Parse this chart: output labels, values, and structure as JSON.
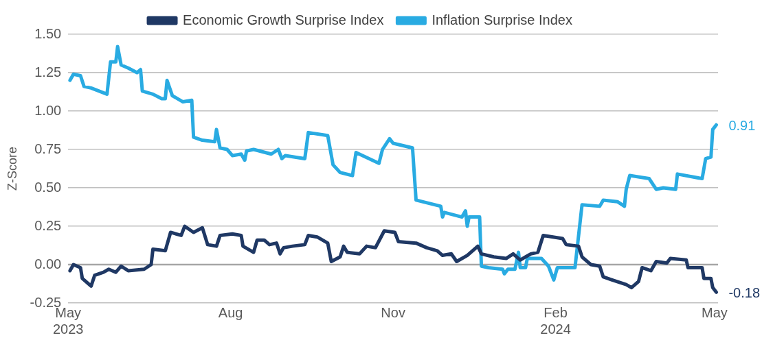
{
  "chart_data": {
    "type": "line",
    "ylabel": "Z-Score",
    "legend": "top",
    "grid": "y",
    "marker": "none",
    "line_style": "solid",
    "xlim": [
      "2023-05-01",
      "2024-05-03"
    ],
    "xticks": [
      {
        "value": "2023-05-01",
        "label": "May 2023"
      },
      {
        "value": "2023-08-01",
        "label": "Aug"
      },
      {
        "value": "2023-11-01",
        "label": "Nov"
      },
      {
        "value": "2024-02-01",
        "label": "Feb 2024"
      },
      {
        "value": "2024-05-01",
        "label": "May"
      }
    ],
    "ylim": [
      -0.25,
      1.5
    ],
    "yticks": [
      {
        "value": -0.25,
        "label": "-0.25"
      },
      {
        "value": 0,
        "label": "0.00"
      },
      {
        "value": 0.25,
        "label": "0.25"
      },
      {
        "value": 0.5,
        "label": "0.50"
      },
      {
        "value": 0.75,
        "label": "0.75"
      },
      {
        "value": 1,
        "label": "1.00"
      },
      {
        "value": 1.25,
        "label": "1.25"
      },
      {
        "value": 1.5,
        "label": "1.50"
      }
    ],
    "ref_lines": [
      {
        "axis": "y",
        "value": 0,
        "color": "#a6a6a6"
      }
    ],
    "series": [
      {
        "name": "Economic Growth Surprise Index",
        "color": "#1f3864",
        "x": [
          "2023-05-02",
          "2023-05-04",
          "2023-05-08",
          "2023-05-09",
          "2023-05-14",
          "2023-05-16",
          "2023-05-21",
          "2023-05-24",
          "2023-05-28",
          "2023-05-31",
          "2023-06-04",
          "2023-06-13",
          "2023-06-17",
          "2023-06-18",
          "2023-06-25",
          "2023-06-28",
          "2023-07-04",
          "2023-07-06",
          "2023-07-11",
          "2023-07-16",
          "2023-07-19",
          "2023-07-24",
          "2023-07-26",
          "2023-08-02",
          "2023-08-07",
          "2023-08-08",
          "2023-08-14",
          "2023-08-16",
          "2023-08-20",
          "2023-08-23",
          "2023-08-27",
          "2023-08-29",
          "2023-08-31",
          "2023-09-05",
          "2023-09-12",
          "2023-09-14",
          "2023-09-19",
          "2023-09-25",
          "2023-09-27",
          "2023-10-02",
          "2023-10-04",
          "2023-10-06",
          "2023-10-13",
          "2023-10-17",
          "2023-10-22",
          "2023-10-27",
          "2023-11-02",
          "2023-11-04",
          "2023-11-14",
          "2023-11-20",
          "2023-11-26",
          "2023-11-29",
          "2023-12-04",
          "2023-12-07",
          "2023-12-13",
          "2023-12-14",
          "2023-12-19",
          "2023-12-21",
          "2023-12-28",
          "2024-01-04",
          "2024-01-08",
          "2024-01-12",
          "2024-01-18",
          "2024-01-22",
          "2024-01-25",
          "2024-02-05",
          "2024-02-07",
          "2024-02-14",
          "2024-02-16",
          "2024-02-21",
          "2024-02-26",
          "2024-02-28",
          "2024-03-04",
          "2024-03-12",
          "2024-03-15",
          "2024-03-19",
          "2024-03-21",
          "2024-03-26",
          "2024-03-29",
          "2024-04-04",
          "2024-04-06",
          "2024-04-15",
          "2024-04-16",
          "2024-04-24",
          "2024-04-25",
          "2024-04-29",
          "2024-04-30",
          "2024-05-02"
        ],
        "values": [
          -0.04,
          0.0,
          -0.02,
          -0.09,
          -0.14,
          -0.07,
          -0.05,
          -0.03,
          -0.05,
          -0.01,
          -0.04,
          -0.03,
          0.0,
          0.1,
          0.09,
          0.21,
          0.19,
          0.25,
          0.21,
          0.24,
          0.13,
          0.12,
          0.19,
          0.2,
          0.19,
          0.12,
          0.08,
          0.16,
          0.16,
          0.13,
          0.14,
          0.07,
          0.11,
          0.12,
          0.13,
          0.19,
          0.18,
          0.14,
          0.02,
          0.05,
          0.12,
          0.08,
          0.07,
          0.12,
          0.11,
          0.22,
          0.21,
          0.15,
          0.14,
          0.11,
          0.09,
          0.06,
          0.07,
          0.02,
          0.06,
          0.07,
          0.12,
          0.07,
          0.05,
          0.04,
          0.07,
          0.03,
          0.07,
          0.08,
          0.19,
          0.17,
          0.13,
          0.12,
          0.05,
          0.0,
          -0.01,
          -0.08,
          -0.1,
          -0.13,
          -0.15,
          -0.11,
          -0.02,
          -0.04,
          0.02,
          0.01,
          0.04,
          0.03,
          -0.02,
          -0.02,
          -0.09,
          -0.09,
          -0.15,
          -0.18
        ],
        "value_labels": [
          null,
          null,
          null,
          null,
          null,
          null,
          null,
          null,
          null,
          null,
          null,
          null,
          null,
          null,
          null,
          null,
          null,
          null,
          null,
          null,
          null,
          null,
          null,
          null,
          null,
          null,
          null,
          null,
          null,
          null,
          null,
          null,
          null,
          null,
          null,
          null,
          null,
          null,
          null,
          null,
          null,
          null,
          null,
          null,
          null,
          null,
          null,
          null,
          null,
          null,
          null,
          null,
          null,
          null,
          null,
          null,
          null,
          null,
          null,
          null,
          null,
          null,
          null,
          null,
          null,
          null,
          null,
          null,
          null,
          null,
          null,
          null,
          null,
          null,
          null,
          null,
          null,
          null,
          null,
          null,
          null,
          null,
          null,
          null,
          null,
          null,
          null,
          "-0.18"
        ]
      },
      {
        "name": "Inflation Surprise Index",
        "color": "#29abe2",
        "x": [
          "2023-05-02",
          "2023-05-04",
          "2023-05-08",
          "2023-05-10",
          "2023-05-14",
          "2023-05-23",
          "2023-05-25",
          "2023-05-28",
          "2023-05-29",
          "2023-05-31",
          "2023-06-04",
          "2023-06-09",
          "2023-06-11",
          "2023-06-12",
          "2023-06-18",
          "2023-06-23",
          "2023-06-25",
          "2023-06-26",
          "2023-06-29",
          "2023-07-05",
          "2023-07-10",
          "2023-07-11",
          "2023-07-16",
          "2023-07-23",
          "2023-07-24",
          "2023-07-26",
          "2023-07-30",
          "2023-08-02",
          "2023-08-07",
          "2023-08-09",
          "2023-08-10",
          "2023-08-14",
          "2023-08-24",
          "2023-08-28",
          "2023-08-30",
          "2023-09-01",
          "2023-09-12",
          "2023-09-14",
          "2023-09-25",
          "2023-09-28",
          "2023-10-02",
          "2023-10-09",
          "2023-10-11",
          "2023-10-24",
          "2023-10-26",
          "2023-10-30",
          "2023-11-01",
          "2023-11-12",
          "2023-11-14",
          "2023-11-28",
          "2023-11-29",
          "2023-11-30",
          "2023-12-10",
          "2023-12-12",
          "2023-12-13",
          "2023-12-14",
          "2023-12-20",
          "2023-12-21",
          "2023-12-25",
          "2024-01-02",
          "2024-01-03",
          "2024-01-05",
          "2024-01-09",
          "2024-01-11",
          "2024-01-12",
          "2024-01-15",
          "2024-01-16",
          "2024-01-24",
          "2024-01-28",
          "2024-01-31",
          "2024-02-02",
          "2024-02-12",
          "2024-02-16",
          "2024-02-26",
          "2024-02-28",
          "2024-03-07",
          "2024-03-11",
          "2024-03-12",
          "2024-03-14",
          "2024-03-25",
          "2024-03-29",
          "2024-04-02",
          "2024-04-09",
          "2024-04-10",
          "2024-04-24",
          "2024-04-26",
          "2024-04-29",
          "2024-04-30",
          "2024-05-02"
        ],
        "values": [
          1.2,
          1.24,
          1.23,
          1.16,
          1.15,
          1.11,
          1.32,
          1.32,
          1.42,
          1.3,
          1.28,
          1.25,
          1.27,
          1.13,
          1.11,
          1.08,
          1.08,
          1.2,
          1.1,
          1.06,
          1.07,
          0.83,
          0.81,
          0.8,
          0.88,
          0.76,
          0.75,
          0.71,
          0.72,
          0.68,
          0.74,
          0.75,
          0.72,
          0.75,
          0.69,
          0.71,
          0.69,
          0.86,
          0.84,
          0.65,
          0.6,
          0.58,
          0.73,
          0.66,
          0.75,
          0.82,
          0.79,
          0.76,
          0.42,
          0.38,
          0.31,
          0.34,
          0.31,
          0.35,
          0.25,
          0.31,
          0.31,
          -0.01,
          -0.02,
          -0.03,
          -0.06,
          -0.03,
          -0.03,
          0.08,
          -0.02,
          -0.02,
          0.04,
          0.04,
          -0.01,
          -0.1,
          -0.02,
          -0.02,
          0.39,
          0.38,
          0.42,
          0.41,
          0.38,
          0.49,
          0.58,
          0.56,
          0.49,
          0.5,
          0.49,
          0.59,
          0.56,
          0.69,
          0.7,
          0.88,
          0.91
        ],
        "value_labels": [
          null,
          null,
          null,
          null,
          null,
          null,
          null,
          null,
          null,
          null,
          null,
          null,
          null,
          null,
          null,
          null,
          null,
          null,
          null,
          null,
          null,
          null,
          null,
          null,
          null,
          null,
          null,
          null,
          null,
          null,
          null,
          null,
          null,
          null,
          null,
          null,
          null,
          null,
          null,
          null,
          null,
          null,
          null,
          null,
          null,
          null,
          null,
          null,
          null,
          null,
          null,
          null,
          null,
          null,
          null,
          null,
          null,
          null,
          null,
          null,
          null,
          null,
          null,
          null,
          null,
          null,
          null,
          null,
          null,
          null,
          null,
          null,
          null,
          null,
          null,
          null,
          null,
          null,
          null,
          null,
          null,
          null,
          null,
          null,
          null,
          null,
          null,
          null,
          "0.91"
        ]
      }
    ]
  }
}
